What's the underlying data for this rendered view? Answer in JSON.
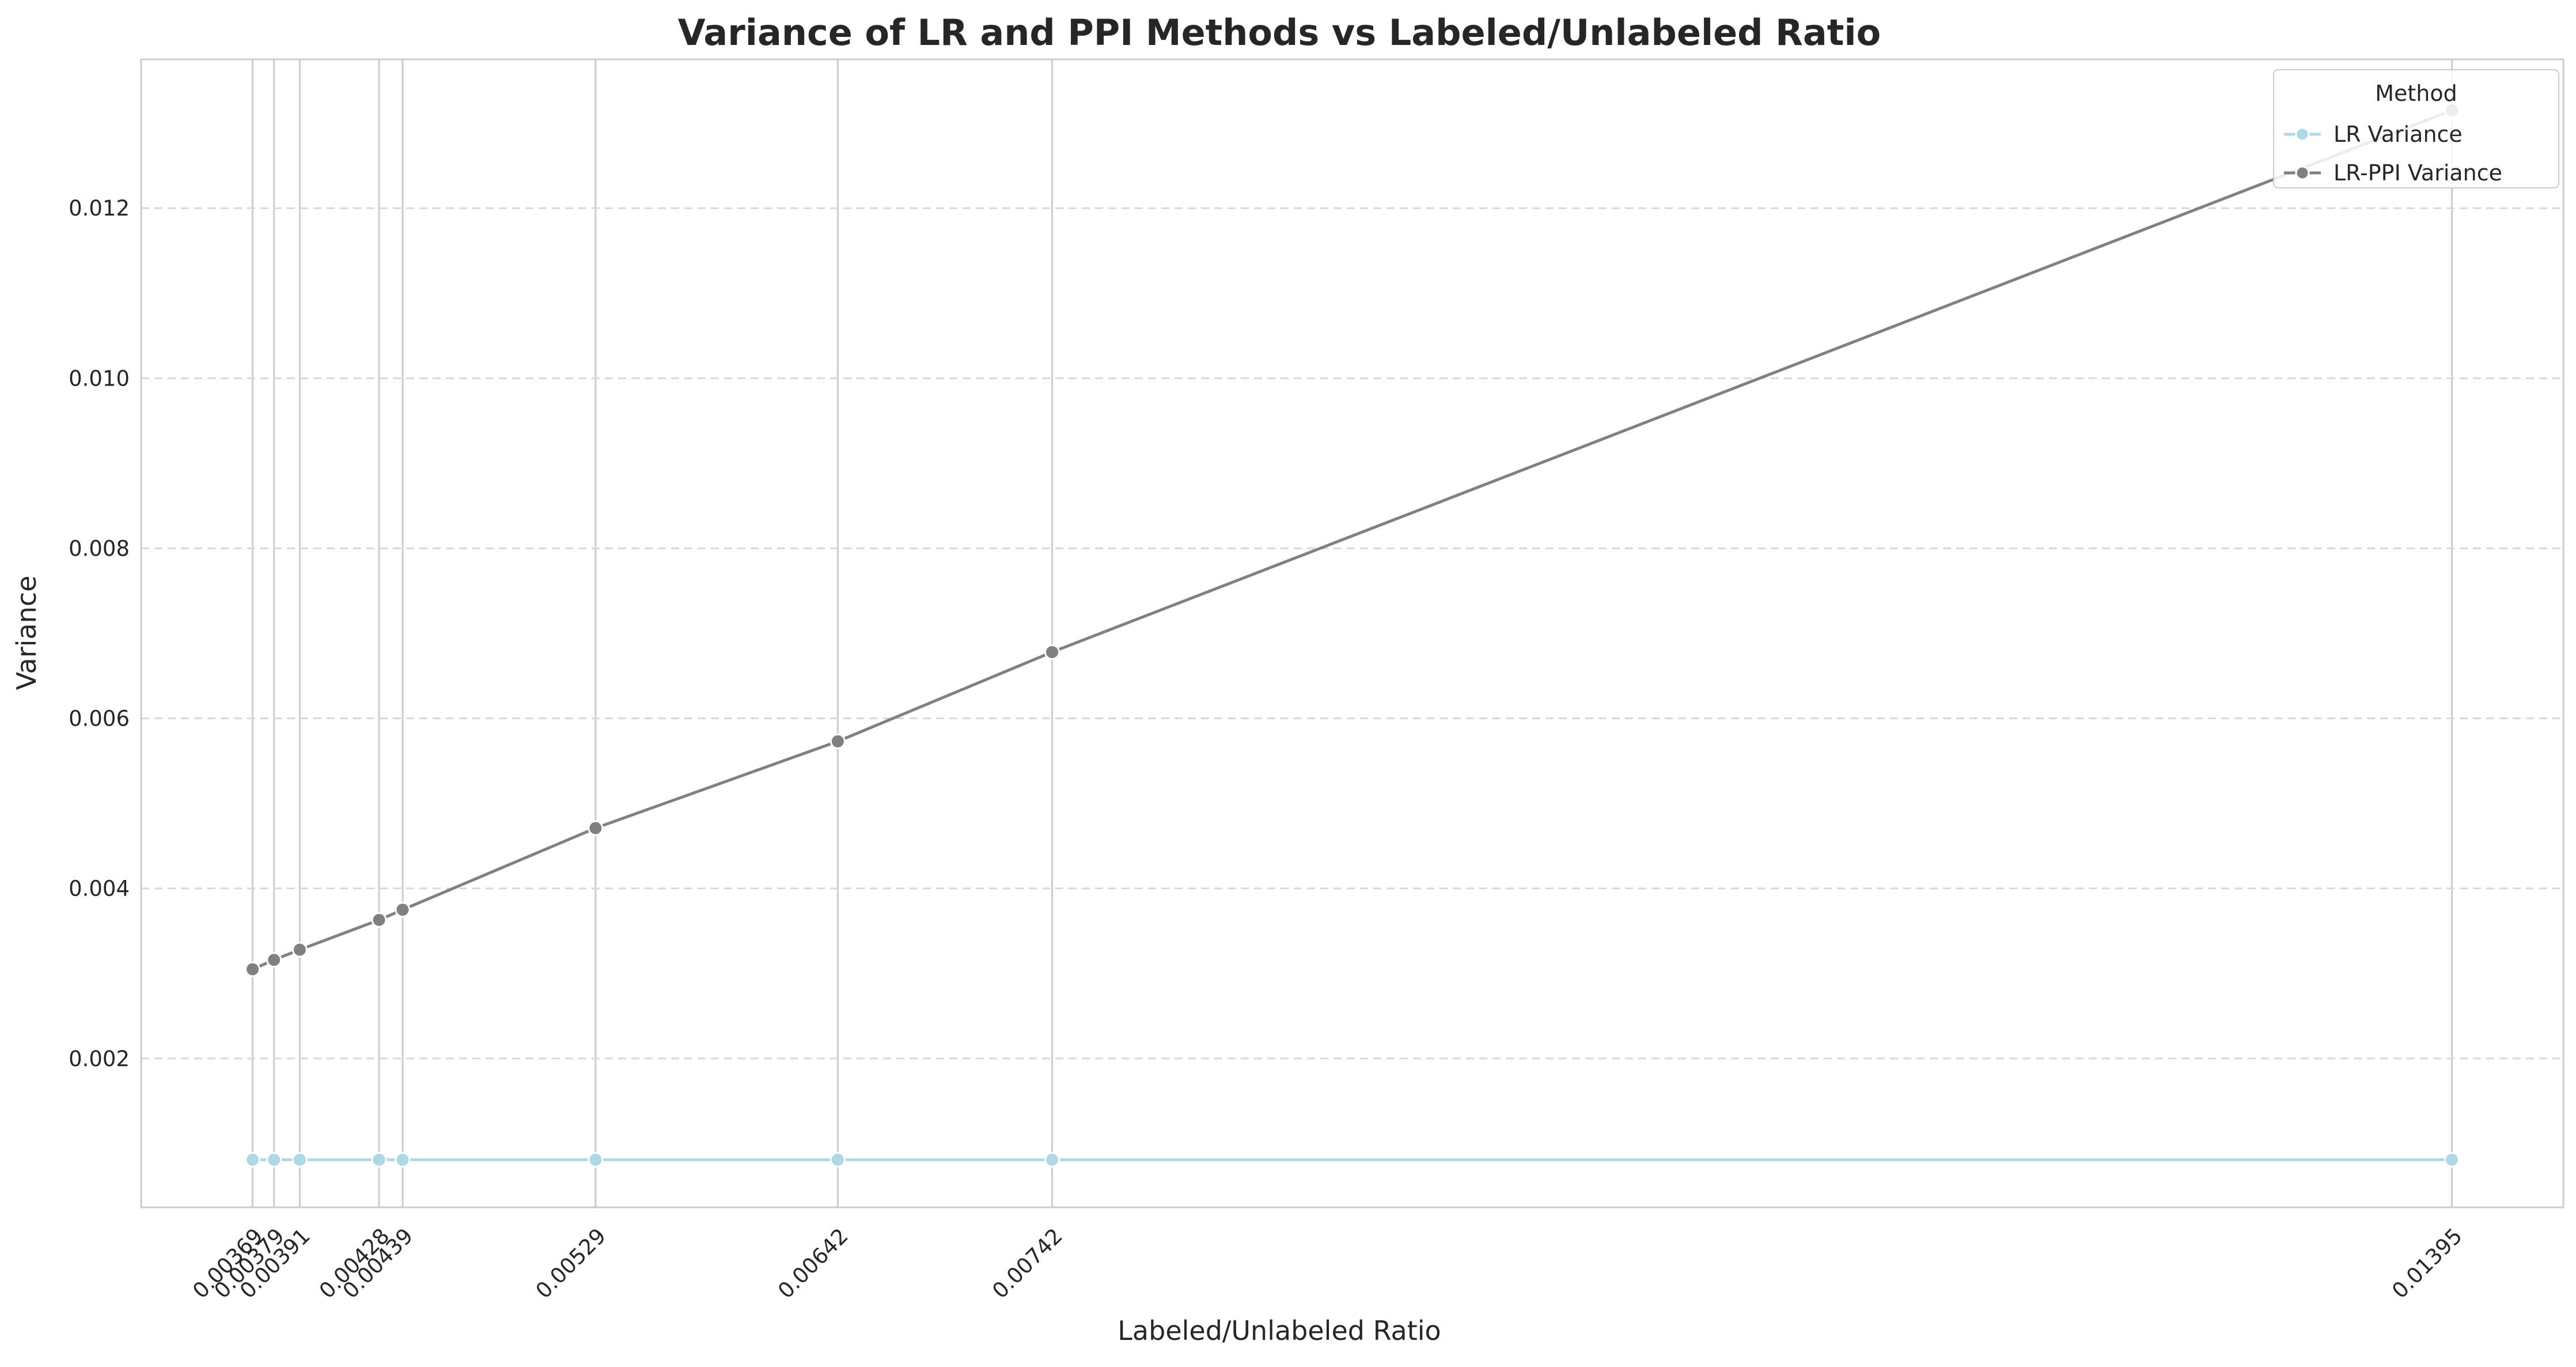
{
  "chart_data": {
    "type": "line",
    "title": "Variance of LR and PPI Methods vs Labeled/Unlabeled Ratio",
    "xlabel": "Labeled/Unlabeled Ratio",
    "ylabel": "Variance",
    "x": [
      0.00369,
      0.00379,
      0.00391,
      0.00428,
      0.00439,
      0.00529,
      0.00642,
      0.00742,
      0.01395
    ],
    "x_tick_labels": [
      "0.00369",
      "0.00379",
      "0.00391",
      "0.00428",
      "0.00439",
      "0.00529",
      "0.00642",
      "0.00742",
      "0.01395"
    ],
    "xlim": [
      0.00317,
      0.01447
    ],
    "ylim": [
      0.00025,
      0.01375
    ],
    "y_ticks": [
      0.002,
      0.004,
      0.006,
      0.008,
      0.01,
      0.012
    ],
    "y_tick_labels": [
      "0.002",
      "0.004",
      "0.006",
      "0.008",
      "0.010",
      "0.012"
    ],
    "grid": true,
    "legend": {
      "title": "Method",
      "position": "top-right"
    },
    "series": [
      {
        "name": "LR Variance",
        "color": "#add8e6",
        "values": [
          0.00081,
          0.00081,
          0.00081,
          0.00081,
          0.00081,
          0.00081,
          0.00081,
          0.00081,
          0.00081
        ]
      },
      {
        "name": "LR-PPI Variance",
        "color": "#808080",
        "values": [
          0.00305,
          0.00316,
          0.00328,
          0.00363,
          0.00375,
          0.00471,
          0.00573,
          0.00678,
          0.01315
        ]
      }
    ]
  }
}
